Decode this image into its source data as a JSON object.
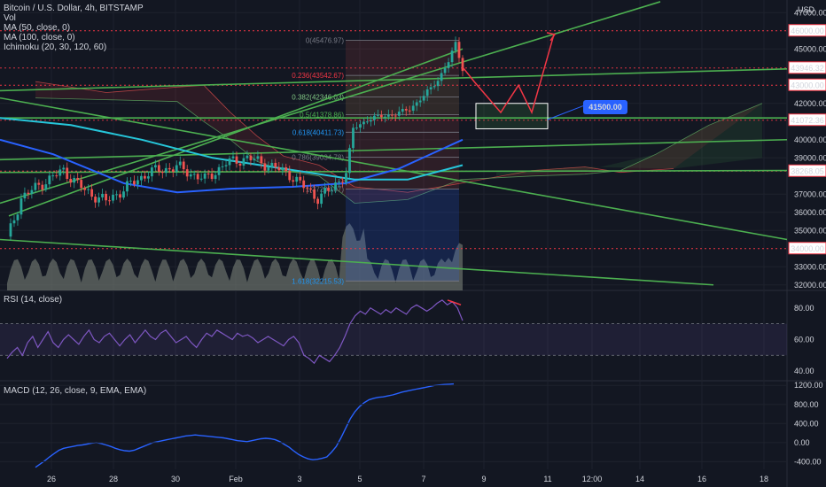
{
  "legend": {
    "title": "Bitcoin / U.S. Dollar, 4h, BITSTAMP",
    "vol": "Vol",
    "ma50": "MA (50, close, 0)",
    "ma100": "MA (100, close, 0)",
    "ichimoku": "Ichimoku (20, 30, 120, 60)",
    "rsi": "RSI (14, close)",
    "macd": "MACD (12, 26, close, 9, EMA, EMA)"
  },
  "currency": "USD",
  "colors": {
    "background": "#131722",
    "up": "#26a69a",
    "down": "#ef5350",
    "trendline": "#4caf50",
    "level_red": "#f23645",
    "target_box": "#ffffff",
    "label_blue": "#2962ff",
    "rsi": "#7e57c2",
    "macd": "#2962ff",
    "ma50": "#2962ff",
    "ma100": "#26c6da"
  },
  "chart_data": [
    {
      "type": "candlestick",
      "title": "Bitcoin / U.S. Dollar, 4h, BITSTAMP",
      "ylim": [
        31500,
        47500
      ],
      "y_ticks": [
        32000,
        33000,
        35000,
        36000,
        37000,
        39000,
        40000,
        42000,
        45000,
        47000
      ],
      "x_ticks": [
        "26",
        "28",
        "30",
        "Feb",
        "3",
        "5",
        "7",
        "9",
        "11",
        "12:00",
        "14",
        "16",
        "18"
      ],
      "price_labels": [
        {
          "value": 46000,
          "text": "46000.00",
          "color": "#f23645"
        },
        {
          "value": 43946.32,
          "text": "43946.32",
          "color": "#f23645"
        },
        {
          "value": 43000,
          "text": "43000.00",
          "color": "#f23645"
        },
        {
          "value": 41072.36,
          "text": "41072.36",
          "color": "#f23645"
        },
        {
          "value": 38268.05,
          "text": "38268.05",
          "color": "#f23645"
        },
        {
          "value": 34000,
          "text": "34000.00",
          "color": "#f23645"
        }
      ],
      "fib_levels": [
        {
          "ratio": "0",
          "value": 45476.97,
          "text": "0(45476.97)"
        },
        {
          "ratio": "0.236",
          "value": 43542.67,
          "text": "0.236(43542.67)"
        },
        {
          "ratio": "0.382",
          "value": 42346.03,
          "text": "0.382(42346.03)"
        },
        {
          "ratio": "0.5",
          "value": 41378.86,
          "text": "0.5(41378.86)"
        },
        {
          "ratio": "0.618",
          "value": 40411.73,
          "text": "0.618(40411.73)"
        },
        {
          "ratio": "0.786",
          "value": 39034.78,
          "text": "0.786(39034.78)"
        },
        {
          "ratio": "1",
          "value": 37280.07,
          "text": "1(37280.07)"
        },
        {
          "ratio": "1.618",
          "value": 32215.53,
          "text": "1.618(32215.53)"
        }
      ],
      "annotation": {
        "text": "41500.00",
        "value": 41500
      },
      "target_zone": {
        "low": 40600,
        "high": 42000
      },
      "projection_path": [
        44000,
        43200,
        41500,
        43000,
        41500,
        45800
      ]
    },
    {
      "type": "line",
      "title": "RSI (14, close)",
      "ylim": [
        35,
        90
      ],
      "y_ticks": [
        40,
        60,
        80
      ],
      "bands": [
        50,
        70
      ],
      "series": [
        {
          "values": [
            48,
            52,
            55,
            50,
            58,
            62,
            55,
            60,
            65,
            58,
            55,
            60,
            63,
            60,
            57,
            62,
            66,
            60,
            58,
            62,
            64,
            60,
            56,
            60,
            63,
            58,
            62,
            66,
            62,
            60,
            64,
            66,
            62,
            58,
            60,
            62,
            58,
            55,
            60,
            64,
            62,
            66,
            64,
            62,
            60,
            64,
            62,
            63,
            61,
            58,
            60,
            62,
            60,
            58,
            56,
            60,
            62,
            58,
            50,
            48,
            45,
            50,
            48,
            46,
            50,
            55,
            62,
            70,
            75,
            78,
            76,
            80,
            78,
            76,
            79,
            77,
            80,
            78,
            76,
            80,
            82,
            80,
            78,
            80,
            83,
            85,
            82,
            84,
            80,
            72
          ]
        }
      ]
    },
    {
      "type": "line",
      "title": "MACD (12, 26, close, 9, EMA, EMA)",
      "ylim": [
        -560,
        1260
      ],
      "y_ticks": [
        -400,
        0,
        400,
        800,
        1200
      ],
      "series": [
        {
          "values": [
            -520,
            -450,
            -380,
            -300,
            -230,
            -160,
            -120,
            -100,
            -80,
            -60,
            -50,
            -30,
            -10,
            0,
            -20,
            -50,
            -80,
            -120,
            -150,
            -170,
            -180,
            -160,
            -120,
            -80,
            -40,
            0,
            20,
            40,
            60,
            80,
            100,
            120,
            140,
            150,
            160,
            150,
            140,
            130,
            120,
            110,
            100,
            80,
            60,
            40,
            30,
            20,
            40,
            60,
            80,
            90,
            80,
            60,
            20,
            -40,
            -100,
            -180,
            -250,
            -300,
            -340,
            -360,
            -350,
            -330,
            -300,
            -200,
            -80,
            100,
            300,
            500,
            650,
            760,
            840,
            900,
            930,
            950,
            960,
            980,
            1000,
            1030,
            1060,
            1080,
            1100,
            1120,
            1140,
            1160,
            1180,
            1200,
            1210,
            1220,
            1225,
            1230
          ]
        }
      ]
    }
  ]
}
